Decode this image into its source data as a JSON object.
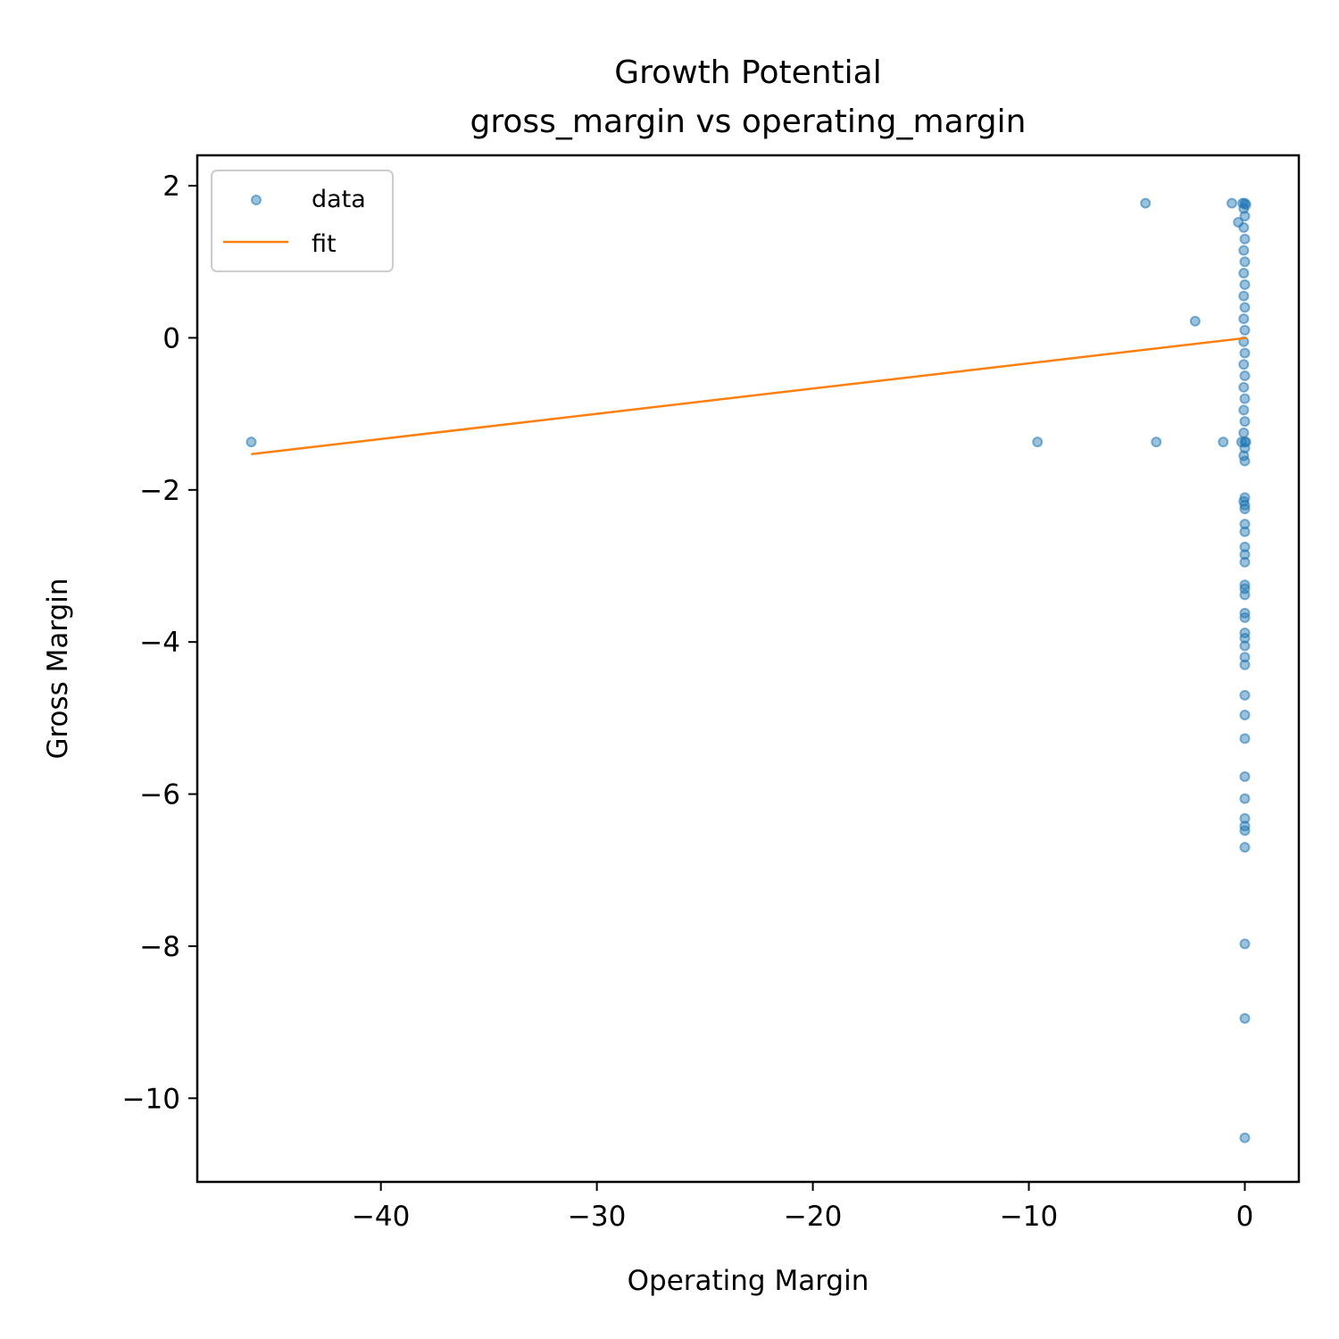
{
  "chart_data": {
    "type": "scatter",
    "title": "Growth Potential",
    "subtitle": "gross_margin vs operating_margin",
    "xlabel": "Operating Margin",
    "ylabel": "Gross Margin",
    "xlim": [
      -48.5,
      2.5
    ],
    "ylim": [
      -11.1,
      2.4
    ],
    "xticks": [
      -40,
      -30,
      -20,
      -10,
      0
    ],
    "xtick_labels": [
      "−40",
      "−30",
      "−20",
      "−10",
      "0"
    ],
    "yticks": [
      2,
      0,
      -2,
      -4,
      -6,
      -8,
      -10
    ],
    "ytick_labels": [
      "2",
      "0",
      "−2",
      "−4",
      "−6",
      "−8",
      "−10"
    ],
    "grid": false,
    "legend_position": "upper-left",
    "colors": {
      "data": "#1f77b4",
      "fit": "#ff7f0e"
    },
    "series": [
      {
        "name": "data",
        "kind": "scatter",
        "points": [
          {
            "x": -46.0,
            "y": -1.37
          },
          {
            "x": -9.6,
            "y": -1.37
          },
          {
            "x": -4.1,
            "y": -1.37
          },
          {
            "x": -1.0,
            "y": -1.37
          },
          {
            "x": -4.6,
            "y": 1.77
          },
          {
            "x": -0.6,
            "y": 1.77
          },
          {
            "x": -2.3,
            "y": 0.22
          },
          {
            "x": -0.3,
            "y": 1.52
          },
          {
            "x": -0.1,
            "y": 1.77
          },
          {
            "x": 0.0,
            "y": 1.77
          },
          {
            "x": 0.05,
            "y": 1.75
          },
          {
            "x": -0.05,
            "y": 1.7
          },
          {
            "x": 0.0,
            "y": 1.6
          },
          {
            "x": -0.05,
            "y": 1.45
          },
          {
            "x": 0.0,
            "y": 1.3
          },
          {
            "x": -0.05,
            "y": 1.15
          },
          {
            "x": 0.0,
            "y": 1.0
          },
          {
            "x": -0.05,
            "y": 0.85
          },
          {
            "x": 0.0,
            "y": 0.7
          },
          {
            "x": -0.05,
            "y": 0.55
          },
          {
            "x": 0.0,
            "y": 0.4
          },
          {
            "x": -0.05,
            "y": 0.25
          },
          {
            "x": 0.0,
            "y": 0.1
          },
          {
            "x": -0.05,
            "y": -0.05
          },
          {
            "x": 0.0,
            "y": -0.2
          },
          {
            "x": -0.05,
            "y": -0.35
          },
          {
            "x": 0.0,
            "y": -0.5
          },
          {
            "x": -0.05,
            "y": -0.65
          },
          {
            "x": 0.0,
            "y": -0.8
          },
          {
            "x": -0.05,
            "y": -0.95
          },
          {
            "x": 0.0,
            "y": -1.1
          },
          {
            "x": -0.05,
            "y": -1.25
          },
          {
            "x": 0.0,
            "y": -1.37
          },
          {
            "x": -0.15,
            "y": -1.37
          },
          {
            "x": 0.05,
            "y": -1.37
          },
          {
            "x": 0.0,
            "y": -1.45
          },
          {
            "x": -0.05,
            "y": -1.55
          },
          {
            "x": 0.0,
            "y": -1.62
          },
          {
            "x": 0.0,
            "y": -2.1
          },
          {
            "x": -0.05,
            "y": -2.15
          },
          {
            "x": 0.0,
            "y": -2.2
          },
          {
            "x": 0.0,
            "y": -2.25
          },
          {
            "x": 0.0,
            "y": -2.45
          },
          {
            "x": 0.0,
            "y": -2.55
          },
          {
            "x": 0.0,
            "y": -2.75
          },
          {
            "x": 0.0,
            "y": -2.85
          },
          {
            "x": 0.0,
            "y": -2.95
          },
          {
            "x": 0.0,
            "y": -3.25
          },
          {
            "x": 0.0,
            "y": -3.3
          },
          {
            "x": 0.0,
            "y": -3.38
          },
          {
            "x": 0.0,
            "y": -3.62
          },
          {
            "x": 0.0,
            "y": -3.68
          },
          {
            "x": 0.0,
            "y": -3.88
          },
          {
            "x": 0.0,
            "y": -3.95
          },
          {
            "x": 0.0,
            "y": -4.05
          },
          {
            "x": 0.0,
            "y": -4.2
          },
          {
            "x": 0.0,
            "y": -4.3
          },
          {
            "x": 0.0,
            "y": -4.7
          },
          {
            "x": 0.0,
            "y": -4.96
          },
          {
            "x": 0.0,
            "y": -5.27
          },
          {
            "x": 0.0,
            "y": -5.77
          },
          {
            "x": 0.0,
            "y": -6.06
          },
          {
            "x": 0.0,
            "y": -6.32
          },
          {
            "x": 0.0,
            "y": -6.42
          },
          {
            "x": 0.0,
            "y": -6.48
          },
          {
            "x": 0.0,
            "y": -6.7
          },
          {
            "x": 0.0,
            "y": -7.97
          },
          {
            "x": 0.0,
            "y": -8.95
          },
          {
            "x": 0.0,
            "y": -10.52
          }
        ]
      },
      {
        "name": "fit",
        "kind": "line",
        "points": [
          {
            "x": -46.0,
            "y": -1.53
          },
          {
            "x": 0.1,
            "y": 0.0
          }
        ]
      }
    ]
  }
}
